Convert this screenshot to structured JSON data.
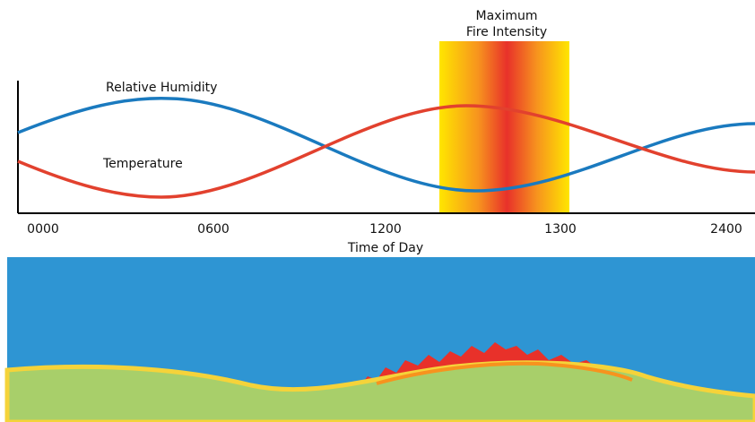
{
  "title": [
    "Maximum",
    "Fire Intensity"
  ],
  "labels": {
    "humidity": "Relative Humidity",
    "temperature": "Temperature"
  },
  "x_axis": {
    "ticks": [
      "0000",
      "0600",
      "1200",
      "1300",
      "2400"
    ],
    "label": "Time of Day"
  }
}
